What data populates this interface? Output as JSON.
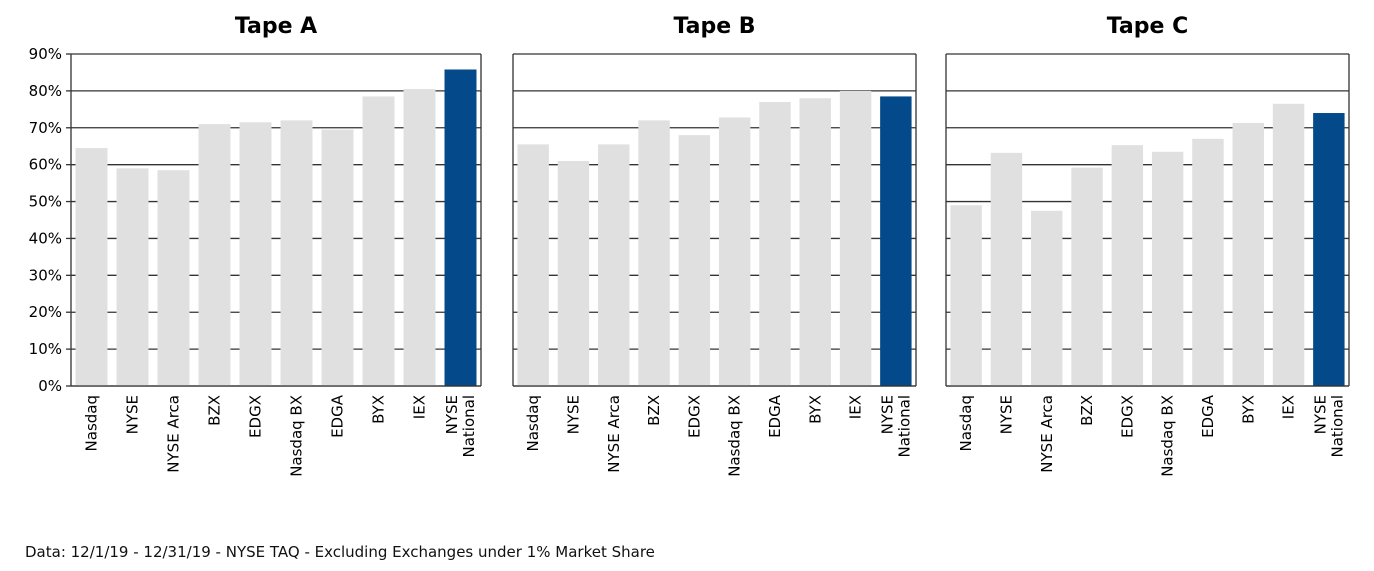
{
  "footnote": "Data: 12/1/19 - 12/31/19 - NYSE TAQ - Excluding Exchanges under 1% Market Share",
  "colors": {
    "bar": "#e0e0e0",
    "highlight": "#044a8a",
    "grid": "#333333"
  },
  "chart_data": [
    {
      "type": "bar",
      "title": "Tape A",
      "categories": [
        "Nasdaq",
        "NYSE",
        "NYSE Arca",
        "BZX",
        "EDGX",
        "Nasdaq BX",
        "EDGA",
        "BYX",
        "IEX",
        "NYSE National"
      ],
      "values": [
        64.5,
        59,
        58.5,
        71,
        71.5,
        72,
        69.5,
        78.5,
        80.5,
        85.8
      ],
      "highlight": "NYSE National",
      "ylim": [
        0,
        90
      ],
      "yticks": [
        0,
        10,
        20,
        30,
        40,
        50,
        60,
        70,
        80,
        90
      ],
      "ytick_labels": [
        "0%",
        "10%",
        "20%",
        "30%",
        "40%",
        "50%",
        "60%",
        "70%",
        "80%",
        "90%"
      ],
      "grid": true
    },
    {
      "type": "bar",
      "title": "Tape B",
      "categories": [
        "Nasdaq",
        "NYSE",
        "NYSE Arca",
        "BZX",
        "EDGX",
        "Nasdaq BX",
        "EDGA",
        "BYX",
        "IEX",
        "NYSE National"
      ],
      "values": [
        65.5,
        61,
        65.5,
        72,
        68,
        72.8,
        77,
        78,
        80,
        78.5
      ],
      "highlight": "NYSE National",
      "ylim": [
        0,
        90
      ],
      "yticks": [
        0,
        10,
        20,
        30,
        40,
        50,
        60,
        70,
        80,
        90
      ],
      "grid": true
    },
    {
      "type": "bar",
      "title": "Tape C",
      "categories": [
        "Nasdaq",
        "NYSE",
        "NYSE Arca",
        "BZX",
        "EDGX",
        "Nasdaq BX",
        "EDGA",
        "BYX",
        "IEX",
        "NYSE National"
      ],
      "values": [
        49,
        63.2,
        47.5,
        59.2,
        65.3,
        63.5,
        67,
        71.3,
        76.5,
        74
      ],
      "highlight": "NYSE National",
      "ylim": [
        0,
        90
      ],
      "yticks": [
        0,
        10,
        20,
        30,
        40,
        50,
        60,
        70,
        80,
        90
      ],
      "grid": true
    }
  ]
}
